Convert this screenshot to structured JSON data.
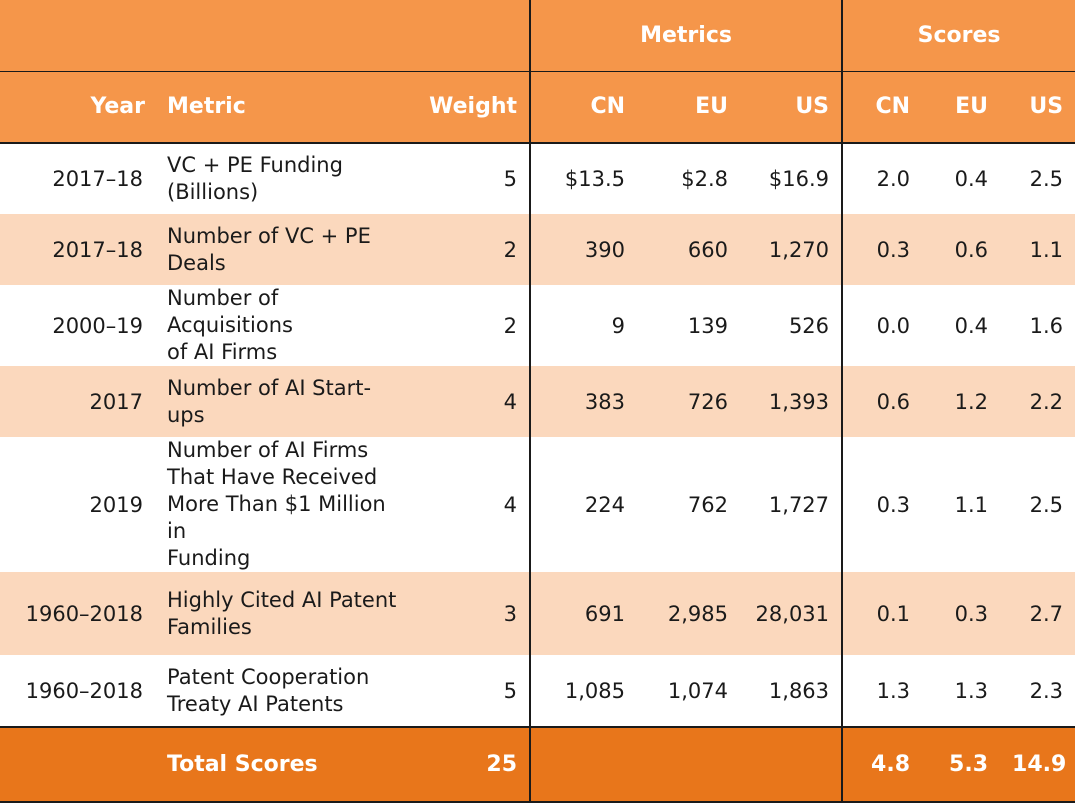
{
  "header": {
    "group_metrics": "Metrics",
    "group_scores": "Scores",
    "columns": {
      "year": "Year",
      "metric": "Metric",
      "weight": "Weight",
      "metrics_cn": "CN",
      "metrics_eu": "EU",
      "metrics_us": "US",
      "scores_cn": "CN",
      "scores_eu": "EU",
      "scores_us": "US"
    }
  },
  "rows": [
    {
      "year": "2017–18",
      "metric": [
        "VC + PE Funding",
        "(Billions)"
      ],
      "weight": "5",
      "cn": "$13.5",
      "eu": "$2.8",
      "us": "$16.9",
      "s_cn": "2.0",
      "s_eu": "0.4",
      "s_us": "2.5"
    },
    {
      "year": "2017–18",
      "metric": [
        "Number of VC + PE",
        "Deals"
      ],
      "weight": "2",
      "cn": "390",
      "eu": "660",
      "us": "1,270",
      "s_cn": "0.3",
      "s_eu": "0.6",
      "s_us": "1.1"
    },
    {
      "year": "2000–19",
      "metric": [
        "Number of Acquisitions",
        "of AI Firms"
      ],
      "weight": "2",
      "cn": "9",
      "eu": "139",
      "us": "526",
      "s_cn": "0.0",
      "s_eu": "0.4",
      "s_us": "1.6"
    },
    {
      "year": "2017",
      "metric": [
        "Number of AI Start-ups"
      ],
      "weight": "4",
      "cn": "383",
      "eu": "726",
      "us": "1,393",
      "s_cn": "0.6",
      "s_eu": "1.2",
      "s_us": "2.2"
    },
    {
      "year": "2019",
      "metric": [
        "Number of AI Firms",
        "That Have Received",
        "More Than $1 Million in",
        "Funding"
      ],
      "weight": "4",
      "cn": "224",
      "eu": "762",
      "us": "1,727",
      "s_cn": "0.3",
      "s_eu": "1.1",
      "s_us": "2.5"
    },
    {
      "year": "1960–2018",
      "metric": [
        "Highly Cited AI Patent",
        "Families"
      ],
      "weight": "3",
      "cn": "691",
      "eu": "2,985",
      "us": "28,031",
      "s_cn": "0.1",
      "s_eu": "0.3",
      "s_us": "2.7"
    },
    {
      "year": "1960–2018",
      "metric": [
        "Patent Cooperation",
        "Treaty AI Patents"
      ],
      "weight": "5",
      "cn": "1,085",
      "eu": "1,074",
      "us": "1,863",
      "s_cn": "1.3",
      "s_eu": "1.3",
      "s_us": "2.3"
    }
  ],
  "total": {
    "label": "Total Scores",
    "weight": "25",
    "s_cn": "4.8",
    "s_eu": "5.3",
    "s_us": "14.9"
  },
  "colors": {
    "header_orange": "#f5964a",
    "row_tan": "#fbd8bd",
    "total_orange": "#e8761b"
  }
}
